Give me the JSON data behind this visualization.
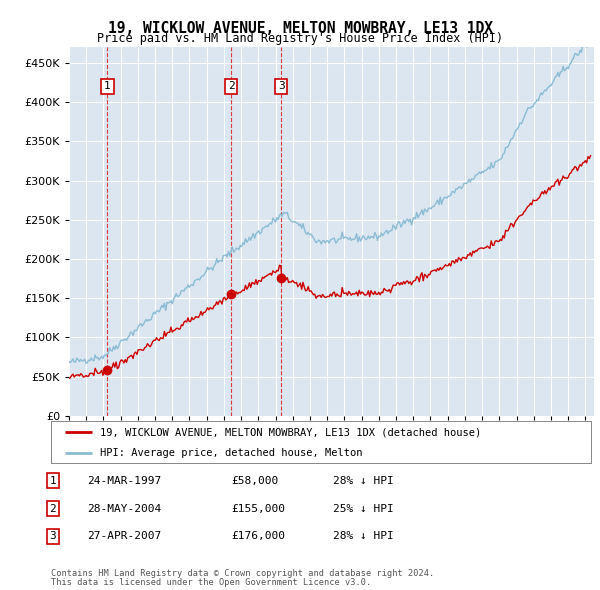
{
  "title": "19, WICKLOW AVENUE, MELTON MOWBRAY, LE13 1DX",
  "subtitle": "Price paid vs. HM Land Registry's House Price Index (HPI)",
  "ylim": [
    0,
    470000
  ],
  "yticks": [
    0,
    50000,
    100000,
    150000,
    200000,
    250000,
    300000,
    350000,
    400000,
    450000
  ],
  "xlim_start": 1995.0,
  "xlim_end": 2025.5,
  "background_color": "#ffffff",
  "plot_bg_color": "#dce6f0",
  "grid_color": "#ffffff",
  "hpi_color": "#8bbcd4",
  "price_color": "#cc0000",
  "transactions": [
    {
      "year": 1997.23,
      "price": 58000,
      "label": "1"
    },
    {
      "year": 2004.42,
      "price": 155000,
      "label": "2"
    },
    {
      "year": 2007.33,
      "price": 176000,
      "label": "3"
    }
  ],
  "legend_property_label": "19, WICKLOW AVENUE, MELTON MOWBRAY, LE13 1DX (detached house)",
  "legend_hpi_label": "HPI: Average price, detached house, Melton",
  "table_rows": [
    {
      "num": "1",
      "date": "24-MAR-1997",
      "price": "£58,000",
      "hpi": "28% ↓ HPI"
    },
    {
      "num": "2",
      "date": "28-MAY-2004",
      "price": "£155,000",
      "hpi": "25% ↓ HPI"
    },
    {
      "num": "3",
      "date": "27-APR-2007",
      "price": "£176,000",
      "hpi": "28% ↓ HPI"
    }
  ],
  "footnote1": "Contains HM Land Registry data © Crown copyright and database right 2024.",
  "footnote2": "This data is licensed under the Open Government Licence v3.0."
}
